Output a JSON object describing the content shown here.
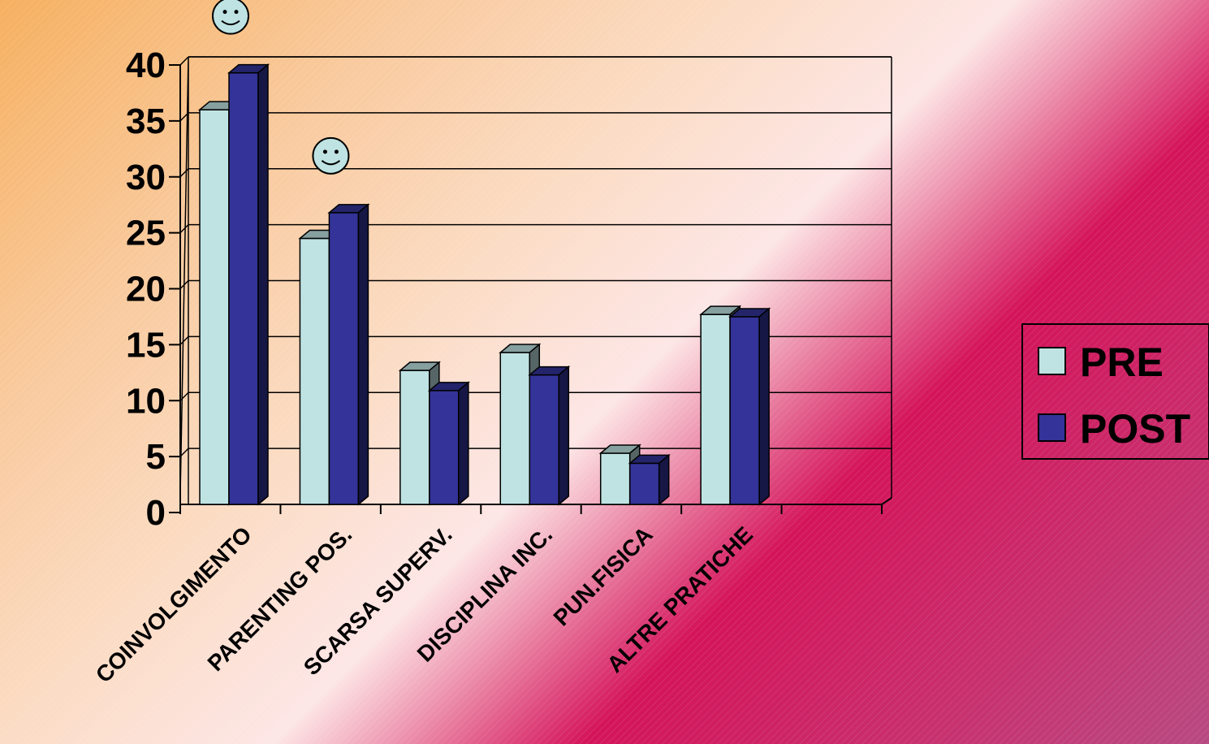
{
  "chart_data": {
    "type": "bar",
    "categories": [
      "COINVOLGIMENTO",
      "PARENTING POS.",
      "SCARSA SUPERV.",
      "DISCIPLINA INC.",
      "PUN.FISICA",
      "ALTRE PRATICHE",
      ""
    ],
    "series": [
      {
        "name": "PRE",
        "values": [
          36,
          24.5,
          12.7,
          14.3,
          5.3,
          17.7,
          null
        ],
        "color": "#bfe3e3"
      },
      {
        "name": "POST",
        "values": [
          39.3,
          26.8,
          10.9,
          12.3,
          4.4,
          17.5,
          null
        ],
        "color": "#333399"
      }
    ],
    "ylim": [
      0,
      40
    ],
    "yticks": [
      "0",
      "5",
      "10",
      "15",
      "20",
      "25",
      "30",
      "35",
      "40"
    ],
    "grid": true,
    "legend": "right",
    "annotations": [
      {
        "category": "COINVOLGIMENTO",
        "icon": "smiley-icon"
      },
      {
        "category": "PARENTING POS.",
        "icon": "smiley-icon"
      }
    ]
  }
}
